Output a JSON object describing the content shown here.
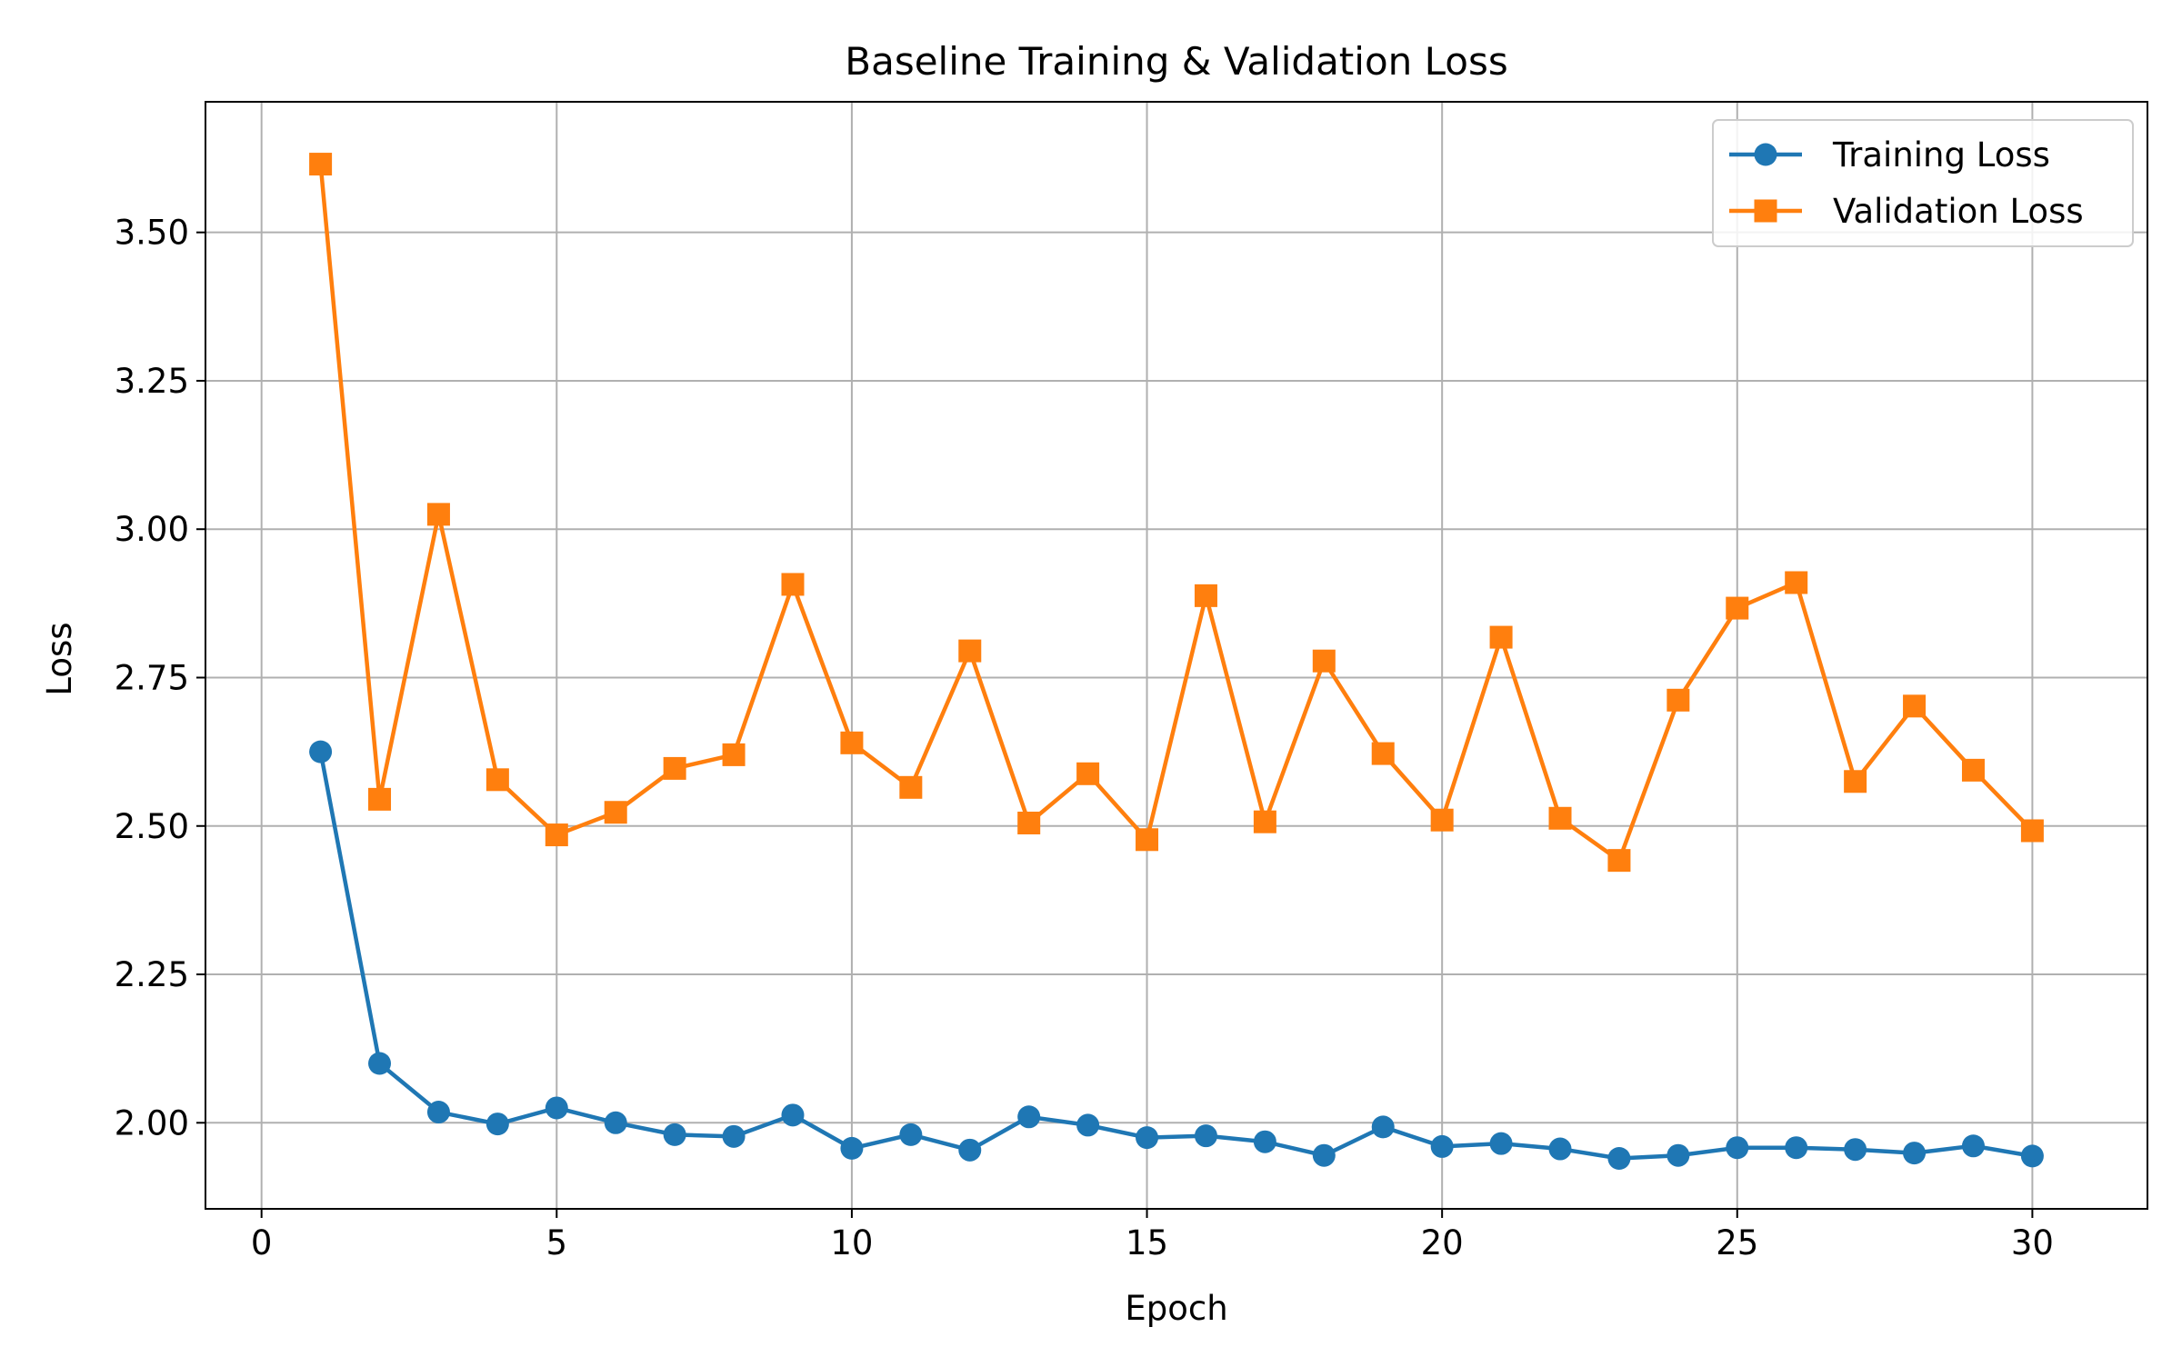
{
  "chart_data": {
    "type": "line",
    "title": "Baseline Training & Validation Loss",
    "xlabel": "Epoch",
    "ylabel": "Loss",
    "xlim": [
      -0.95,
      31.95
    ],
    "ylim": [
      1.855,
      3.72
    ],
    "xticks": [
      0,
      5,
      10,
      15,
      20,
      25,
      30
    ],
    "yticks": [
      2.0,
      2.25,
      2.5,
      2.75,
      3.0,
      3.25,
      3.5
    ],
    "xtick_labels": [
      "0",
      "5",
      "10",
      "15",
      "20",
      "25",
      "30"
    ],
    "ytick_labels": [
      "2.00",
      "2.25",
      "2.50",
      "2.75",
      "3.00",
      "3.25",
      "3.50"
    ],
    "grid": true,
    "legend_position": "top-right",
    "x": [
      1,
      2,
      3,
      4,
      5,
      6,
      7,
      8,
      9,
      10,
      11,
      12,
      13,
      14,
      15,
      16,
      17,
      18,
      19,
      20,
      21,
      22,
      23,
      24,
      25,
      26,
      27,
      28,
      29,
      30
    ],
    "series": [
      {
        "name": "Training Loss",
        "color": "#1f77b4",
        "marker": "circle",
        "values": [
          2.625,
          2.1,
          2.018,
          1.998,
          2.025,
          2.0,
          1.98,
          1.977,
          2.013,
          1.957,
          1.98,
          1.954,
          2.01,
          1.996,
          1.975,
          1.978,
          1.968,
          1.945,
          1.993,
          1.96,
          1.965,
          1.956,
          1.94,
          1.945,
          1.958,
          1.958,
          1.955,
          1.949,
          1.961,
          1.944
        ]
      },
      {
        "name": "Validation Loss",
        "color": "#ff7f0e",
        "marker": "square",
        "values": [
          3.615,
          2.545,
          3.025,
          2.578,
          2.485,
          2.523,
          2.597,
          2.62,
          2.907,
          2.64,
          2.565,
          2.795,
          2.505,
          2.588,
          2.477,
          2.888,
          2.507,
          2.778,
          2.622,
          2.51,
          2.818,
          2.513,
          2.442,
          2.712,
          2.867,
          2.91,
          2.575,
          2.702,
          2.594,
          2.492
        ]
      }
    ]
  }
}
